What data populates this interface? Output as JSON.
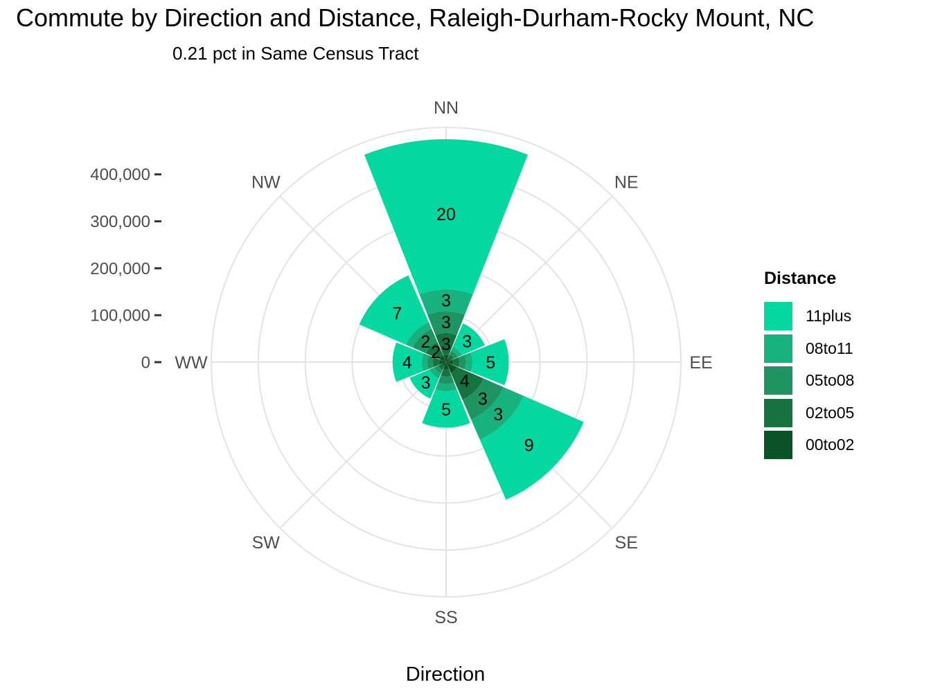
{
  "title": "Commute by Direction and Distance, Raleigh-Durham-Rocky Mount, NC",
  "subtitle": "0.21 pct in Same Census Tract",
  "axis": {
    "x_title": "Direction"
  },
  "legend": {
    "title": "Distance",
    "items": [
      {
        "label": "11plus",
        "color": "#05D7A0"
      },
      {
        "label": "08to11",
        "color": "#17B27E"
      },
      {
        "label": "05to08",
        "color": "#1E9463"
      },
      {
        "label": "02to05",
        "color": "#16723E"
      },
      {
        "label": "00to02",
        "color": "#0C5227"
      }
    ]
  },
  "chart_data": {
    "type": "polar_stacked_bar_rose",
    "title": "Commute by Direction and Distance, Raleigh-Durham-Rocky Mount, NC",
    "subtitle": "0.21 pct in Same Census Tract",
    "xlabel": "Direction",
    "value_labels_are": "percent of total commuters (shown on segments)",
    "directions": [
      "NN",
      "NE",
      "EE",
      "SE",
      "SS",
      "SW",
      "WW",
      "NW"
    ],
    "direction_angles_deg": [
      0,
      45,
      90,
      135,
      180,
      225,
      270,
      315
    ],
    "distance_bins_from_center": [
      "00to02",
      "02to05",
      "05to08",
      "08to11",
      "11plus"
    ],
    "colors": {
      "00to02": "#0C5227",
      "02to05": "#16723E",
      "05to08": "#1E9463",
      "08to11": "#17B27E",
      "11plus": "#05D7A0"
    },
    "series": [
      {
        "name": "00to02",
        "values": [
          15500,
          9000,
          14000,
          25000,
          15500,
          9000,
          14000,
          15500
        ],
        "pct_labels": [
          null,
          null,
          null,
          null,
          null,
          null,
          null,
          null
        ]
      },
      {
        "name": "02to05",
        "values": [
          46500,
          9000,
          14000,
          62000,
          15500,
          9000,
          14000,
          31000
        ],
        "pct_labels": [
          "3",
          null,
          null,
          "4",
          null,
          null,
          null,
          "2"
        ]
      },
      {
        "name": "05to08",
        "values": [
          46500,
          9000,
          14000,
          46500,
          15500,
          9000,
          12000,
          31000
        ],
        "pct_labels": [
          "3",
          null,
          null,
          "3",
          null,
          null,
          null,
          "2"
        ]
      },
      {
        "name": "08to11",
        "values": [
          46500,
          9000,
          14000,
          46500,
          15500,
          11000,
          12000,
          15500
        ],
        "pct_labels": [
          "3",
          null,
          null,
          "3",
          null,
          null,
          null,
          null
        ]
      },
      {
        "name": "11plus",
        "values": [
          320000,
          54000,
          77500,
          139500,
          77500,
          46500,
          62000,
          108500
        ],
        "pct_labels": [
          "20",
          "3",
          "5",
          "9",
          "5",
          "3",
          "4",
          "7"
        ]
      }
    ],
    "r_axis": {
      "units": "commuters (count)",
      "tick_values": [
        0,
        100000,
        200000,
        300000,
        400000
      ],
      "tick_labels": [
        "0",
        "100,000",
        "200,000",
        "300,000",
        "400,000"
      ],
      "gridline_values": [
        100000,
        200000,
        300000,
        400000,
        500000
      ],
      "range": [
        0,
        500000
      ]
    },
    "legend_position": "right",
    "grid": true
  },
  "style": {
    "grid_color": "#E3E3E3",
    "axis_text_color": "#4D4D4D",
    "tick_mark_color": "#333333",
    "segment_label_color": "#000000",
    "background": "#FFFFFF"
  }
}
